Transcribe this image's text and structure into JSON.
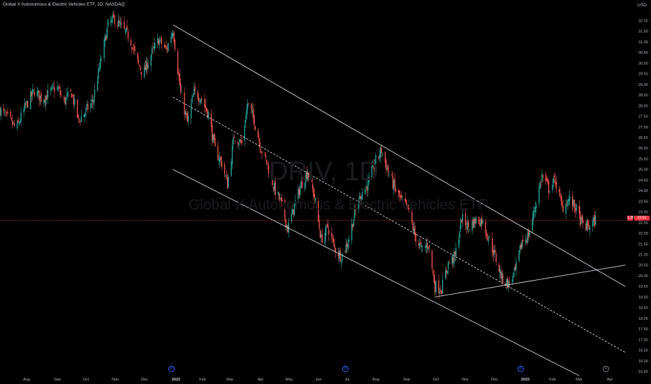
{
  "header": {
    "title": "Global X Autonomous & Electric Vehicles ETF, 1D, NASDAQ",
    "currency": "USD"
  },
  "watermark": {
    "ticker": "DRIV, 1D",
    "name": "Global X Autonomous & Electric Vehicles ETF"
  },
  "price_tags": {
    "change_label": "1.36",
    "last_label": "22.61",
    "last_price": 22.61,
    "tag_color": "#f23645"
  },
  "event_icons": [
    {
      "label": "D",
      "color": "#2962ff"
    },
    {
      "label": "D",
      "color": "#2962ff"
    },
    {
      "label": "D",
      "color": "#2962ff"
    },
    {
      "label": "E",
      "color": "#787b86"
    }
  ],
  "colors": {
    "up": "#26a69a",
    "down": "#ef5350",
    "trendline": "#d1d4dc",
    "background": "#000000"
  },
  "chart_data": {
    "type": "candlestick",
    "title": "Global X Autonomous & Electric Vehicles ETF, 1D, NASDAQ",
    "x_tick_labels": [
      "Aug",
      "Sep",
      "Oct",
      "Nov",
      "Dec",
      "2022",
      "Feb",
      "Mar",
      "Apr",
      "May",
      "Jun",
      "Jul",
      "Aug",
      "Sep",
      "Oct",
      "Nov",
      "Dec",
      "2023",
      "Feb",
      "Mar",
      "Apr"
    ],
    "y_tick_labels": [
      "32.00",
      "31.50",
      "31.00",
      "30.50",
      "30.00",
      "29.50",
      "29.00",
      "28.50",
      "28.00",
      "27.50",
      "27.00",
      "26.50",
      "26.00",
      "25.50",
      "25.00",
      "24.50",
      "24.00",
      "23.50",
      "23.00",
      "22.50",
      "22.00",
      "21.50",
      "21.00",
      "20.50",
      "20.00",
      "19.50",
      "19.00",
      "18.50",
      "18.00",
      "17.50",
      "17.00",
      "16.50",
      "16.00",
      "15.50"
    ],
    "ylim": [
      15.5,
      32.5
    ],
    "x_range": [
      "2021-07-15",
      "2023-04-30"
    ],
    "grid": false,
    "close_path": [
      [
        "2021-07-15",
        27.8
      ],
      [
        "2021-07-25",
        27.3
      ],
      [
        "2021-08-01",
        26.9
      ],
      [
        "2021-08-10",
        27.9
      ],
      [
        "2021-08-20",
        28.7
      ],
      [
        "2021-08-28",
        28.3
      ],
      [
        "2021-09-05",
        28.6
      ],
      [
        "2021-09-12",
        28.9
      ],
      [
        "2021-09-20",
        28.2
      ],
      [
        "2021-09-28",
        28.6
      ],
      [
        "2021-10-05",
        27.3
      ],
      [
        "2021-10-12",
        27.7
      ],
      [
        "2021-10-20",
        28.2
      ],
      [
        "2021-10-28",
        30.0
      ],
      [
        "2021-11-05",
        31.8
      ],
      [
        "2021-11-12",
        32.1
      ],
      [
        "2021-11-20",
        31.6
      ],
      [
        "2021-11-28",
        31.2
      ],
      [
        "2021-12-05",
        30.1
      ],
      [
        "2021-12-12",
        29.5
      ],
      [
        "2021-12-20",
        30.4
      ],
      [
        "2021-12-28",
        31.1
      ],
      [
        "2022-01-05",
        30.6
      ],
      [
        "2022-01-12",
        31.6
      ],
      [
        "2022-01-20",
        28.6
      ],
      [
        "2022-01-27",
        27.2
      ],
      [
        "2022-02-03",
        28.6
      ],
      [
        "2022-02-10",
        28.4
      ],
      [
        "2022-02-18",
        27.6
      ],
      [
        "2022-02-25",
        25.9
      ],
      [
        "2022-03-04",
        25.3
      ],
      [
        "2022-03-10",
        24.3
      ],
      [
        "2022-03-17",
        26.6
      ],
      [
        "2022-03-25",
        26.2
      ],
      [
        "2022-03-31",
        28.1
      ],
      [
        "2022-04-07",
        27.3
      ],
      [
        "2022-04-14",
        26.0
      ],
      [
        "2022-04-21",
        25.2
      ],
      [
        "2022-04-28",
        24.1
      ],
      [
        "2022-05-05",
        23.4
      ],
      [
        "2022-05-12",
        22.2
      ],
      [
        "2022-05-19",
        23.3
      ],
      [
        "2022-05-26",
        24.3
      ],
      [
        "2022-06-02",
        24.9
      ],
      [
        "2022-06-09",
        23.7
      ],
      [
        "2022-06-16",
        21.7
      ],
      [
        "2022-06-23",
        22.3
      ],
      [
        "2022-06-30",
        21.3
      ],
      [
        "2022-07-07",
        20.9
      ],
      [
        "2022-07-14",
        21.6
      ],
      [
        "2022-07-21",
        22.9
      ],
      [
        "2022-07-28",
        23.9
      ],
      [
        "2022-08-04",
        24.3
      ],
      [
        "2022-08-11",
        25.3
      ],
      [
        "2022-08-18",
        25.9
      ],
      [
        "2022-08-25",
        24.9
      ],
      [
        "2022-09-01",
        24.1
      ],
      [
        "2022-09-08",
        23.5
      ],
      [
        "2022-09-15",
        23.1
      ],
      [
        "2022-09-22",
        21.9
      ],
      [
        "2022-09-29",
        21.2
      ],
      [
        "2022-10-06",
        21.5
      ],
      [
        "2022-10-13",
        19.5
      ],
      [
        "2022-10-20",
        19.4
      ],
      [
        "2022-10-27",
        20.6
      ],
      [
        "2022-11-03",
        20.9
      ],
      [
        "2022-11-10",
        22.7
      ],
      [
        "2022-11-17",
        22.3
      ],
      [
        "2022-11-24",
        22.6
      ],
      [
        "2022-12-01",
        22.6
      ],
      [
        "2022-12-08",
        21.8
      ],
      [
        "2022-12-15",
        20.9
      ],
      [
        "2022-12-22",
        19.9
      ],
      [
        "2022-12-29",
        19.6
      ],
      [
        "2023-01-05",
        20.2
      ],
      [
        "2023-01-12",
        21.6
      ],
      [
        "2023-01-19",
        21.9
      ],
      [
        "2023-01-26",
        23.3
      ],
      [
        "2023-02-02",
        24.7
      ],
      [
        "2023-02-09",
        24.1
      ],
      [
        "2023-02-16",
        24.5
      ],
      [
        "2023-02-23",
        23.2
      ],
      [
        "2023-03-02",
        23.6
      ],
      [
        "2023-03-09",
        23.2
      ],
      [
        "2023-03-16",
        22.4
      ],
      [
        "2023-03-23",
        22.3
      ],
      [
        "2023-03-30",
        22.61
      ]
    ],
    "drawings": [
      {
        "name": "channel-upper",
        "style": "solid",
        "from": [
          "2022-01-12",
          31.8
        ],
        "to": [
          "2023-04-30",
          19.5
        ]
      },
      {
        "name": "channel-middle",
        "style": "dashed",
        "from": [
          "2022-01-12",
          28.4
        ],
        "to": [
          "2023-04-30",
          16.4
        ]
      },
      {
        "name": "channel-lower",
        "style": "solid",
        "from": [
          "2022-01-12",
          25.0
        ],
        "to": [
          "2023-03-13",
          15.3
        ]
      },
      {
        "name": "support-line",
        "style": "solid",
        "from": [
          "2022-10-13",
          19.0
        ],
        "to": [
          "2023-04-30",
          20.5
        ]
      }
    ]
  }
}
